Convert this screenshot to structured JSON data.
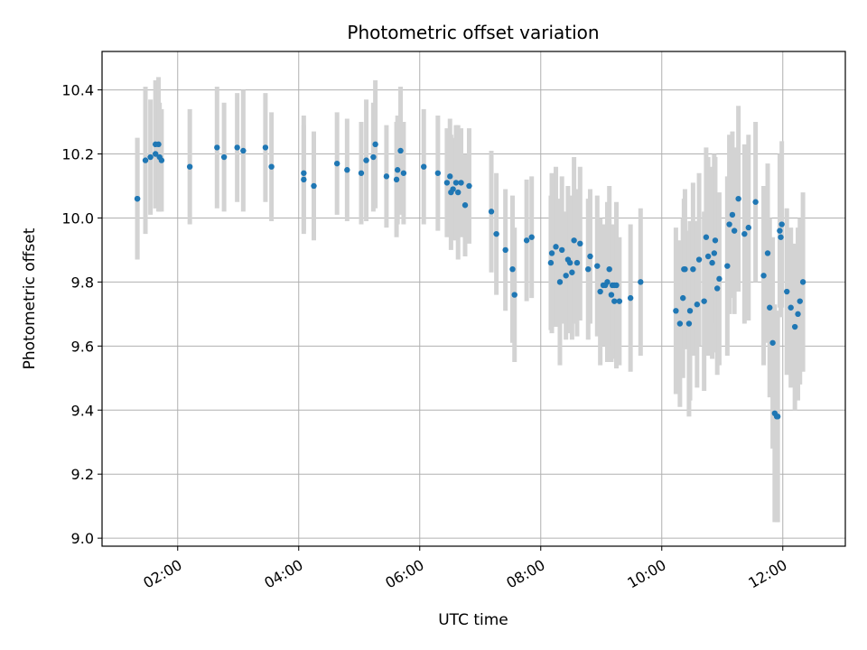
{
  "chart_data": {
    "type": "scatter",
    "title": "Photometric offset variation",
    "xlabel": "UTC time",
    "ylabel": "Photometric offset",
    "xlim": [
      "00:45",
      "13:02"
    ],
    "ylim": [
      8.975,
      10.52
    ],
    "grid": true,
    "x_ticks": [
      "02:00",
      "04:00",
      "06:00",
      "08:00",
      "10:00",
      "12:00"
    ],
    "y_ticks": [
      "9.0",
      "9.2",
      "9.4",
      "9.6",
      "9.8",
      "10.0",
      "10.2",
      "10.4"
    ],
    "colors": {
      "point": "#1f77b4",
      "errorbar": "#d3d3d3",
      "grid": "#b0b0b0"
    },
    "series": [
      {
        "x": [
          "01:20",
          "01:20",
          "01:28",
          "01:33",
          "01:38",
          "01:38",
          "01:41",
          "01:42",
          "01:44",
          "02:12",
          "02:39",
          "02:46",
          "02:59",
          "03:05",
          "03:27",
          "03:33",
          "04:05",
          "04:05",
          "04:15",
          "04:38",
          "04:48",
          "05:02",
          "05:07",
          "05:14",
          "05:16",
          "05:27",
          "05:37",
          "05:38",
          "05:41",
          "05:44",
          "06:04",
          "06:18",
          "06:27",
          "06:30",
          "06:31",
          "06:33",
          "06:36",
          "06:38",
          "06:41",
          "06:45",
          "06:49",
          "07:11",
          "07:16",
          "07:25",
          "07:32",
          "07:34",
          "07:46",
          "07:51",
          "08:10",
          "08:11",
          "08:15",
          "08:19",
          "08:21",
          "08:25",
          "08:27",
          "08:29",
          "08:31",
          "08:33",
          "08:36",
          "08:39",
          "08:47",
          "08:49",
          "08:56",
          "08:59",
          "09:02",
          "09:04",
          "09:06",
          "09:08",
          "09:10",
          "09:11",
          "09:13",
          "09:13",
          "09:15",
          "09:18",
          "09:29",
          "09:39",
          "10:14",
          "10:18",
          "10:21",
          "10:22",
          "10:23",
          "10:27",
          "10:28",
          "10:31",
          "10:35",
          "10:37",
          "10:42",
          "10:44",
          "10:46",
          "10:50",
          "10:52",
          "10:53",
          "10:55",
          "10:57",
          "11:05",
          "11:07",
          "11:10",
          "11:12",
          "11:16",
          "11:22",
          "11:26",
          "11:33",
          "11:41",
          "11:45",
          "11:47",
          "11:50",
          "11:52",
          "11:54",
          "11:55",
          "11:57",
          "11:58",
          "11:59",
          "12:04",
          "12:08",
          "12:12",
          "12:15",
          "12:17",
          "12:20"
        ],
        "y": [
          10.06,
          10.06,
          10.18,
          10.19,
          10.2,
          10.23,
          10.23,
          10.19,
          10.18,
          10.16,
          10.22,
          10.19,
          10.22,
          10.21,
          10.22,
          10.16,
          10.14,
          10.12,
          10.1,
          10.17,
          10.15,
          10.14,
          10.18,
          10.19,
          10.23,
          10.13,
          10.12,
          10.15,
          10.21,
          10.14,
          10.16,
          10.14,
          10.11,
          10.13,
          10.08,
          10.09,
          10.11,
          10.08,
          10.11,
          10.04,
          10.1,
          10.02,
          9.95,
          9.9,
          9.84,
          9.76,
          9.93,
          9.94,
          9.86,
          9.89,
          9.91,
          9.8,
          9.9,
          9.82,
          9.87,
          9.86,
          9.83,
          9.93,
          9.86,
          9.92,
          9.84,
          9.88,
          9.85,
          9.77,
          9.79,
          9.79,
          9.8,
          9.84,
          9.76,
          9.79,
          9.79,
          9.74,
          9.79,
          9.74,
          9.75,
          9.8,
          9.71,
          9.67,
          9.75,
          9.84,
          9.84,
          9.67,
          9.71,
          9.84,
          9.73,
          9.87,
          9.74,
          9.94,
          9.88,
          9.86,
          9.89,
          9.93,
          9.78,
          9.81,
          9.85,
          9.98,
          10.01,
          9.96,
          10.06,
          9.95,
          9.97,
          10.05,
          9.82,
          9.89,
          9.72,
          9.61,
          9.39,
          9.38,
          9.38,
          9.96,
          9.94,
          9.98,
          9.77,
          9.72,
          9.66,
          9.7,
          9.74,
          9.8
        ],
        "yerr": [
          0.19,
          0.19,
          0.23,
          0.18,
          0.17,
          0.2,
          0.21,
          0.17,
          0.16,
          0.18,
          0.19,
          0.17,
          0.17,
          0.19,
          0.17,
          0.17,
          0.18,
          0.17,
          0.17,
          0.16,
          0.16,
          0.16,
          0.19,
          0.17,
          0.2,
          0.16,
          0.18,
          0.17,
          0.2,
          0.16,
          0.18,
          0.18,
          0.17,
          0.18,
          0.18,
          0.16,
          0.18,
          0.21,
          0.17,
          0.16,
          0.18,
          0.19,
          0.19,
          0.19,
          0.23,
          0.21,
          0.19,
          0.19,
          0.21,
          0.25,
          0.25,
          0.26,
          0.23,
          0.2,
          0.23,
          0.21,
          0.21,
          0.26,
          0.23,
          0.24,
          0.22,
          0.21,
          0.22,
          0.23,
          0.19,
          0.19,
          0.25,
          0.26,
          0.21,
          0.19,
          0.19,
          0.18,
          0.26,
          0.2,
          0.23,
          0.23,
          0.26,
          0.26,
          0.25,
          0.22,
          0.25,
          0.29,
          0.28,
          0.27,
          0.26,
          0.27,
          0.28,
          0.28,
          0.31,
          0.3,
          0.31,
          0.26,
          0.27,
          0.27,
          0.28,
          0.28,
          0.26,
          0.26,
          0.29,
          0.28,
          0.29,
          0.25,
          0.28,
          0.28,
          0.28,
          0.33,
          0.34,
          0.33,
          0.33,
          0.24,
          0.25,
          0.26,
          0.26,
          0.25,
          0.26,
          0.27,
          0.26,
          0.28
        ]
      }
    ]
  }
}
